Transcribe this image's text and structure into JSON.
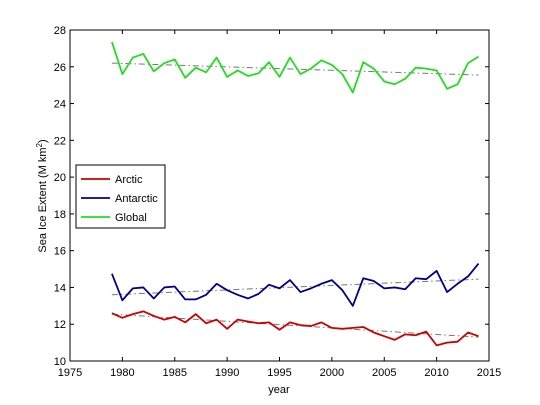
{
  "chart_data": {
    "type": "line",
    "title": "",
    "xlabel": "year",
    "ylabel": "Sea Ice Extent (M km",
    "ylabel_sup": "2",
    "ylabel_close": ")",
    "xlim": [
      1975,
      2015
    ],
    "ylim": [
      10,
      28
    ],
    "xticks": [
      1975,
      1980,
      1985,
      1990,
      1995,
      2000,
      2005,
      2010,
      2015
    ],
    "yticks": [
      10,
      12,
      14,
      16,
      18,
      20,
      22,
      24,
      26,
      28
    ],
    "grid": false,
    "legend_position": "center-left",
    "x": [
      1979,
      1980,
      1981,
      1982,
      1983,
      1984,
      1985,
      1986,
      1987,
      1988,
      1989,
      1990,
      1991,
      1992,
      1993,
      1994,
      1995,
      1996,
      1997,
      1998,
      1999,
      2000,
      2001,
      2002,
      2003,
      2004,
      2005,
      2006,
      2007,
      2008,
      2009,
      2010,
      2011,
      2012,
      2013,
      2014
    ],
    "series": [
      {
        "name": "Arctic",
        "color": "#cc0000",
        "values": [
          12.6,
          12.35,
          12.55,
          12.7,
          12.45,
          12.25,
          12.4,
          12.1,
          12.55,
          12.05,
          12.25,
          11.75,
          12.25,
          12.15,
          12.05,
          12.1,
          11.7,
          12.1,
          11.95,
          11.9,
          12.1,
          11.8,
          11.75,
          11.8,
          11.85,
          11.55,
          11.35,
          11.15,
          11.45,
          11.4,
          11.6,
          10.85,
          11.0,
          11.05,
          11.55,
          11.35
        ],
        "trend": [
          12.55,
          11.3
        ]
      },
      {
        "name": "Antarctic",
        "color": "#00008b",
        "values": [
          14.75,
          13.3,
          13.95,
          14.0,
          13.4,
          14.0,
          14.05,
          13.35,
          13.35,
          13.6,
          14.2,
          13.85,
          13.6,
          13.4,
          13.65,
          14.15,
          13.95,
          14.4,
          13.75,
          13.95,
          14.2,
          14.4,
          13.85,
          13.0,
          14.5,
          14.35,
          13.95,
          14.0,
          13.9,
          14.5,
          14.45,
          14.9,
          13.75,
          14.2,
          14.6,
          15.3
        ],
        "trend": [
          13.6,
          14.45
        ]
      },
      {
        "name": "Global",
        "color": "#22dd22",
        "values": [
          27.35,
          25.6,
          26.5,
          26.7,
          25.75,
          26.2,
          26.4,
          25.4,
          25.95,
          25.7,
          26.5,
          25.45,
          25.8,
          25.5,
          25.65,
          26.25,
          25.45,
          26.5,
          25.6,
          25.9,
          26.35,
          26.1,
          25.6,
          24.6,
          26.25,
          25.9,
          25.2,
          25.05,
          25.35,
          25.95,
          25.9,
          25.8,
          24.8,
          25.05,
          26.2,
          26.55
        ],
        "trend": [
          26.2,
          25.55
        ]
      }
    ]
  }
}
